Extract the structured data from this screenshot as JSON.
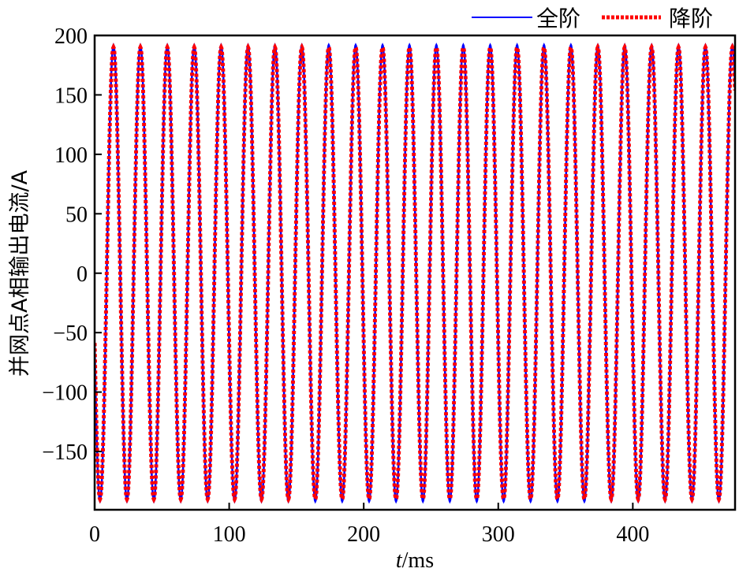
{
  "chart_data": {
    "type": "line",
    "title": "",
    "xlabel_italic": "t",
    "xlabel_unit": "/ms",
    "xlabel": "t/ms",
    "ylabel": "并网点A相输出电流/A",
    "xlim": [
      0,
      476
    ],
    "ylim": [
      -199,
      200
    ],
    "x_ticks": [
      0,
      100,
      200,
      300,
      400
    ],
    "y_ticks": [
      200,
      150,
      100,
      50,
      0,
      -50,
      -100,
      -150
    ],
    "y_tick_labels": [
      "200",
      "150",
      "100",
      "50",
      "0",
      "−50",
      "−100",
      "−150"
    ],
    "x_tick_labels": [
      "0",
      "100",
      "200",
      "300",
      "400"
    ],
    "grid": false,
    "legend_position": "top-right, outside plot",
    "legend": [
      {
        "label": "全阶",
        "style": "solid",
        "color": "#0000ff"
      },
      {
        "label": "降阶",
        "style": "dotted",
        "color": "#ff0000"
      }
    ],
    "series": [
      {
        "name": "全阶",
        "color": "#0000ff",
        "model": "sinusoid",
        "frequency_hz": 50,
        "amplitude": 192,
        "first_trough_ms": 4,
        "value_at_t0": -62,
        "trough_value": -194,
        "peak_value": 192
      },
      {
        "name": "降阶",
        "color": "#ff0000",
        "model": "sinusoid",
        "frequency_hz": 50,
        "amplitude": 190,
        "first_trough_ms": 4,
        "value_at_t0": -62,
        "trough_value": -190,
        "peak_value": 190
      }
    ],
    "sample_points_ms": [
      0,
      4,
      9,
      14,
      19,
      24,
      34,
      44,
      54
    ],
    "sample_values_A": [
      -62,
      -192,
      0,
      192,
      0,
      -192,
      192,
      -192,
      192
    ]
  }
}
